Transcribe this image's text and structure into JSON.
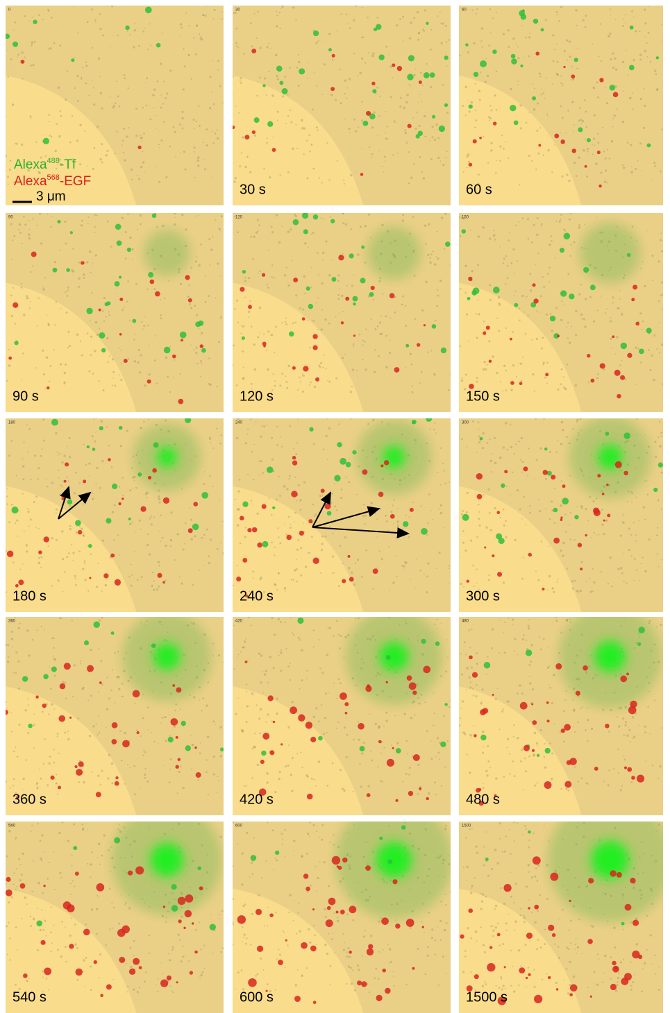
{
  "legend": {
    "items": [
      {
        "name": "Alexa",
        "sup": "488",
        "suffix": "-Tf",
        "color": "#2fae2f"
      },
      {
        "name": "Alexa",
        "sup": "568",
        "suffix": "-EGF",
        "color": "#d8221c"
      }
    ],
    "scale": "3 μm"
  },
  "panels": [
    {
      "stamp": "0"
    },
    {
      "stamp": "30",
      "time": "30 s"
    },
    {
      "stamp": "60",
      "time": "60 s"
    },
    {
      "stamp": "90",
      "time": "90 s"
    },
    {
      "stamp": "120",
      "time": "120 s"
    },
    {
      "stamp": "150",
      "time": "150 s"
    },
    {
      "stamp": "180",
      "time": "180 s"
    },
    {
      "stamp": "240",
      "time": "240 s"
    },
    {
      "stamp": "300",
      "time": "300 s"
    },
    {
      "stamp": "360",
      "time": "360 s"
    },
    {
      "stamp": "420",
      "time": "420 s"
    },
    {
      "stamp": "480",
      "time": "480 s"
    },
    {
      "stamp": "540",
      "time": "540 s"
    },
    {
      "stamp": "600",
      "time": "600 s"
    },
    {
      "stamp": "1500",
      "time": "1500 s"
    }
  ]
}
